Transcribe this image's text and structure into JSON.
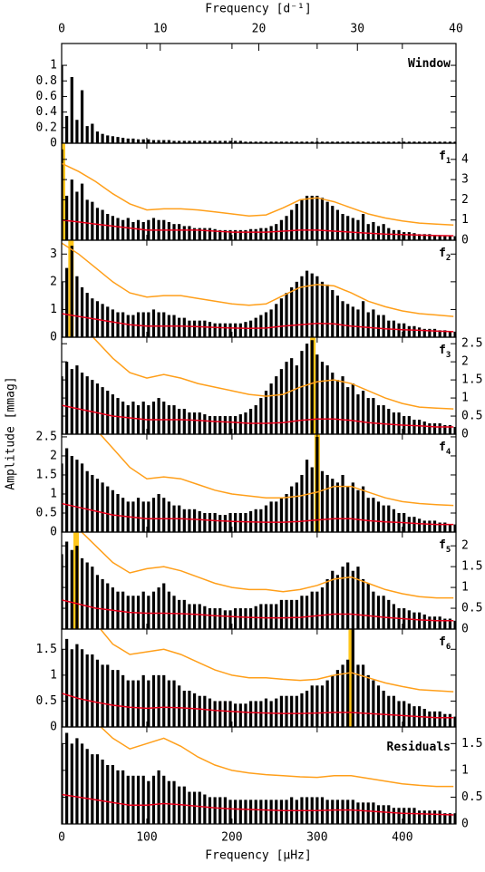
{
  "chart_data": {
    "type": "periodogram",
    "xlabel": "Frequency [μHz]",
    "x2label": "Frequency [d⁻¹]",
    "ylabel": "Amplitude [mmag]",
    "xlim": [
      0,
      463
    ],
    "xticks": [
      0,
      100,
      200,
      300,
      400
    ],
    "x2lim": [
      0,
      40
    ],
    "x2ticks": [
      0,
      10,
      20,
      30,
      40
    ],
    "color": "#000000",
    "upper_color": "#ff9f1a",
    "lower_color": "#e8001c",
    "highlight_color": "#ffc61a",
    "x": [
      0,
      6,
      12,
      18,
      24,
      30,
      36,
      42,
      48,
      54,
      60,
      66,
      72,
      78,
      84,
      90,
      96,
      102,
      108,
      114,
      120,
      126,
      132,
      138,
      144,
      150,
      156,
      162,
      168,
      174,
      180,
      186,
      192,
      198,
      204,
      210,
      216,
      222,
      228,
      234,
      240,
      246,
      252,
      258,
      264,
      270,
      276,
      282,
      288,
      294,
      300,
      306,
      312,
      318,
      324,
      330,
      336,
      342,
      348,
      354,
      360,
      366,
      372,
      378,
      384,
      390,
      396,
      402,
      408,
      414,
      420,
      426,
      432,
      438,
      444,
      450,
      456,
      462
    ],
    "noise_x": [
      0,
      20,
      40,
      60,
      80,
      100,
      120,
      140,
      160,
      180,
      200,
      220,
      240,
      260,
      280,
      300,
      320,
      340,
      360,
      380,
      400,
      420,
      440,
      460
    ],
    "panels": [
      {
        "label": "Window",
        "axis_side": "left",
        "ylim": [
          0,
          1.28
        ],
        "yticks": [
          0,
          0.2,
          0.4,
          0.6,
          0.8,
          1
        ],
        "values": [
          1.0,
          0.35,
          0.85,
          0.3,
          0.68,
          0.22,
          0.25,
          0.15,
          0.12,
          0.1,
          0.09,
          0.08,
          0.07,
          0.06,
          0.06,
          0.05,
          0.05,
          0.05,
          0.04,
          0.04,
          0.04,
          0.04,
          0.03,
          0.03,
          0.03,
          0.03,
          0.03,
          0.03,
          0.03,
          0.03,
          0.03,
          0.03,
          0.03,
          0.03,
          0.03,
          0.03,
          0.02,
          0.02,
          0.02,
          0.02,
          0.02,
          0.02,
          0.02,
          0.02,
          0.02,
          0.02,
          0.02,
          0.02,
          0.02,
          0.02,
          0.02,
          0.02,
          0.02,
          0.02,
          0.02,
          0.02,
          0.02,
          0.02,
          0.02,
          0.02,
          0.02,
          0.02,
          0.02,
          0.02,
          0.02,
          0.02,
          0.02,
          0.02,
          0.02,
          0.02,
          0.02,
          0.02,
          0.02,
          0.02,
          0.02,
          0.02,
          0.02,
          0.02
        ]
      },
      {
        "label": "f",
        "label_sub": "1",
        "axis_side": "right",
        "ylim": [
          0,
          4.8
        ],
        "yticks": [
          0,
          1,
          2,
          3,
          4
        ],
        "highlight": 1,
        "values": [
          4.5,
          2.2,
          3.0,
          2.4,
          2.8,
          2.0,
          1.9,
          1.6,
          1.5,
          1.3,
          1.2,
          1.1,
          1.0,
          1.1,
          0.9,
          1.0,
          0.9,
          1.0,
          1.1,
          1.0,
          1.0,
          0.9,
          0.8,
          0.8,
          0.7,
          0.7,
          0.6,
          0.6,
          0.6,
          0.6,
          0.55,
          0.5,
          0.5,
          0.5,
          0.5,
          0.5,
          0.5,
          0.55,
          0.55,
          0.6,
          0.6,
          0.7,
          0.8,
          1.0,
          1.2,
          1.5,
          1.8,
          2.0,
          2.2,
          2.2,
          2.2,
          2.1,
          1.9,
          1.7,
          1.5,
          1.3,
          1.2,
          1.1,
          1.0,
          1.3,
          0.8,
          0.9,
          0.7,
          0.8,
          0.6,
          0.5,
          0.5,
          0.4,
          0.4,
          0.35,
          0.3,
          0.3,
          0.3,
          0.25,
          0.25,
          0.2,
          0.2,
          0.2
        ],
        "upper_curve": [
          3.8,
          3.4,
          2.9,
          2.3,
          1.8,
          1.5,
          1.55,
          1.55,
          1.5,
          1.4,
          1.3,
          1.2,
          1.25,
          1.6,
          2.0,
          2.1,
          1.9,
          1.6,
          1.3,
          1.1,
          0.95,
          0.85,
          0.8,
          0.75
        ],
        "lower_curve": [
          1.0,
          0.9,
          0.8,
          0.7,
          0.6,
          0.5,
          0.5,
          0.5,
          0.5,
          0.45,
          0.4,
          0.4,
          0.4,
          0.45,
          0.5,
          0.5,
          0.45,
          0.4,
          0.35,
          0.3,
          0.28,
          0.25,
          0.23,
          0.22
        ]
      },
      {
        "label": "f",
        "label_sub": "2",
        "axis_side": "left",
        "ylim": [
          0,
          3.5
        ],
        "yticks": [
          0,
          1,
          2,
          3
        ],
        "highlight": 11,
        "values": [
          2.0,
          2.5,
          3.3,
          2.2,
          1.8,
          1.6,
          1.4,
          1.3,
          1.2,
          1.1,
          1.0,
          0.9,
          0.9,
          0.8,
          0.8,
          0.9,
          0.9,
          0.9,
          1.0,
          0.9,
          0.9,
          0.8,
          0.8,
          0.7,
          0.7,
          0.6,
          0.6,
          0.6,
          0.6,
          0.55,
          0.5,
          0.5,
          0.5,
          0.5,
          0.5,
          0.5,
          0.55,
          0.6,
          0.7,
          0.8,
          0.9,
          1.0,
          1.2,
          1.4,
          1.6,
          1.8,
          2.0,
          2.2,
          2.4,
          2.3,
          2.2,
          2.0,
          1.9,
          1.7,
          1.5,
          1.3,
          1.2,
          1.1,
          1.0,
          1.3,
          0.9,
          1.0,
          0.8,
          0.8,
          0.6,
          0.6,
          0.5,
          0.5,
          0.4,
          0.4,
          0.35,
          0.3,
          0.3,
          0.3,
          0.25,
          0.25,
          0.2,
          0.2
        ],
        "upper_curve": [
          3.4,
          3.0,
          2.5,
          2.0,
          1.6,
          1.45,
          1.5,
          1.5,
          1.4,
          1.3,
          1.2,
          1.15,
          1.2,
          1.5,
          1.8,
          1.9,
          1.85,
          1.6,
          1.3,
          1.1,
          0.95,
          0.85,
          0.8,
          0.75
        ],
        "lower_curve": [
          0.85,
          0.75,
          0.65,
          0.55,
          0.45,
          0.4,
          0.4,
          0.4,
          0.38,
          0.35,
          0.33,
          0.32,
          0.33,
          0.4,
          0.45,
          0.5,
          0.48,
          0.4,
          0.35,
          0.3,
          0.27,
          0.25,
          0.22,
          0.2
        ]
      },
      {
        "label": "f",
        "label_sub": "3",
        "axis_side": "right",
        "ylim": [
          0,
          2.68
        ],
        "yticks": [
          0,
          0.5,
          1,
          1.5,
          2,
          2.5
        ],
        "highlight": 295,
        "values": [
          1.6,
          2.0,
          1.8,
          1.9,
          1.7,
          1.6,
          1.5,
          1.4,
          1.3,
          1.2,
          1.1,
          1.0,
          0.9,
          0.8,
          0.9,
          0.8,
          0.9,
          0.8,
          0.9,
          1.0,
          0.9,
          0.8,
          0.8,
          0.7,
          0.7,
          0.6,
          0.6,
          0.6,
          0.55,
          0.5,
          0.5,
          0.5,
          0.5,
          0.5,
          0.5,
          0.55,
          0.6,
          0.7,
          0.8,
          1.0,
          1.2,
          1.4,
          1.6,
          1.8,
          2.0,
          2.1,
          1.9,
          2.3,
          2.5,
          2.6,
          2.2,
          2.0,
          1.9,
          1.7,
          1.5,
          1.6,
          1.3,
          1.4,
          1.1,
          1.2,
          1.0,
          1.0,
          0.8,
          0.8,
          0.7,
          0.6,
          0.6,
          0.5,
          0.5,
          0.4,
          0.4,
          0.35,
          0.3,
          0.3,
          0.3,
          0.25,
          0.25,
          0.2
        ],
        "upper_curve": [
          3.5,
          3.1,
          2.6,
          2.1,
          1.7,
          1.55,
          1.65,
          1.55,
          1.4,
          1.3,
          1.2,
          1.1,
          1.05,
          1.1,
          1.3,
          1.45,
          1.5,
          1.4,
          1.2,
          1.0,
          0.85,
          0.75,
          0.72,
          0.7
        ],
        "lower_curve": [
          0.8,
          0.7,
          0.6,
          0.5,
          0.45,
          0.4,
          0.4,
          0.4,
          0.38,
          0.35,
          0.33,
          0.3,
          0.3,
          0.32,
          0.38,
          0.42,
          0.42,
          0.38,
          0.32,
          0.28,
          0.25,
          0.23,
          0.2,
          0.2
        ]
      },
      {
        "label": "f",
        "label_sub": "4",
        "axis_side": "left",
        "ylim": [
          0,
          2.57
        ],
        "yticks": [
          0,
          0.5,
          1,
          1.5,
          2,
          2.5
        ],
        "highlight": 300,
        "values": [
          1.8,
          2.2,
          2.0,
          1.9,
          1.8,
          1.6,
          1.5,
          1.4,
          1.3,
          1.2,
          1.1,
          1.0,
          0.9,
          0.8,
          0.8,
          0.9,
          0.8,
          0.8,
          0.9,
          1.0,
          0.9,
          0.8,
          0.7,
          0.7,
          0.6,
          0.6,
          0.6,
          0.55,
          0.5,
          0.5,
          0.5,
          0.45,
          0.45,
          0.5,
          0.5,
          0.5,
          0.5,
          0.55,
          0.6,
          0.6,
          0.7,
          0.8,
          0.8,
          0.9,
          1.0,
          1.2,
          1.3,
          1.5,
          1.9,
          1.7,
          2.5,
          1.6,
          1.5,
          1.4,
          1.3,
          1.5,
          1.2,
          1.3,
          1.1,
          1.2,
          0.9,
          0.9,
          0.8,
          0.7,
          0.7,
          0.6,
          0.5,
          0.5,
          0.4,
          0.4,
          0.35,
          0.3,
          0.3,
          0.3,
          0.25,
          0.25,
          0.2,
          0.2
        ],
        "upper_curve": [
          3.6,
          3.2,
          2.7,
          2.2,
          1.7,
          1.4,
          1.45,
          1.4,
          1.25,
          1.1,
          1.0,
          0.95,
          0.9,
          0.9,
          0.95,
          1.05,
          1.2,
          1.2,
          1.05,
          0.9,
          0.8,
          0.75,
          0.72,
          0.7
        ],
        "lower_curve": [
          0.75,
          0.65,
          0.55,
          0.45,
          0.4,
          0.35,
          0.35,
          0.35,
          0.33,
          0.3,
          0.28,
          0.27,
          0.26,
          0.26,
          0.28,
          0.32,
          0.35,
          0.35,
          0.3,
          0.27,
          0.25,
          0.22,
          0.2,
          0.2
        ]
      },
      {
        "label": "f",
        "label_sub": "5",
        "axis_side": "right",
        "ylim": [
          0,
          2.33
        ],
        "yticks": [
          0,
          0.5,
          1,
          1.5,
          2
        ],
        "highlight": 17,
        "values": [
          1.8,
          2.1,
          1.9,
          2.0,
          1.7,
          1.6,
          1.5,
          1.3,
          1.2,
          1.1,
          1.0,
          0.9,
          0.9,
          0.8,
          0.8,
          0.8,
          0.9,
          0.8,
          0.9,
          1.0,
          1.1,
          0.9,
          0.8,
          0.7,
          0.7,
          0.6,
          0.6,
          0.6,
          0.55,
          0.5,
          0.5,
          0.5,
          0.45,
          0.45,
          0.5,
          0.5,
          0.5,
          0.5,
          0.55,
          0.6,
          0.6,
          0.6,
          0.6,
          0.7,
          0.7,
          0.7,
          0.7,
          0.8,
          0.8,
          0.9,
          0.9,
          1.0,
          1.2,
          1.4,
          1.3,
          1.5,
          1.6,
          1.4,
          1.5,
          1.2,
          1.1,
          0.9,
          0.8,
          0.8,
          0.7,
          0.6,
          0.5,
          0.5,
          0.45,
          0.4,
          0.4,
          0.35,
          0.3,
          0.3,
          0.3,
          0.25,
          0.25,
          0.2
        ],
        "upper_curve": [
          2.8,
          2.4,
          2.0,
          1.6,
          1.35,
          1.45,
          1.5,
          1.4,
          1.25,
          1.1,
          1.0,
          0.95,
          0.95,
          0.9,
          0.95,
          1.05,
          1.2,
          1.25,
          1.1,
          0.95,
          0.85,
          0.78,
          0.75,
          0.75
        ],
        "lower_curve": [
          0.7,
          0.6,
          0.5,
          0.45,
          0.4,
          0.38,
          0.38,
          0.37,
          0.35,
          0.32,
          0.3,
          0.28,
          0.27,
          0.27,
          0.28,
          0.32,
          0.36,
          0.36,
          0.32,
          0.28,
          0.25,
          0.22,
          0.2,
          0.2
        ]
      },
      {
        "label": "f",
        "label_sub": "6",
        "axis_side": "left",
        "ylim": [
          0,
          1.89
        ],
        "yticks": [
          0,
          0.5,
          1,
          1.5
        ],
        "highlight": 340,
        "values": [
          1.5,
          1.7,
          1.5,
          1.6,
          1.5,
          1.4,
          1.4,
          1.3,
          1.2,
          1.2,
          1.1,
          1.1,
          1.0,
          0.9,
          0.9,
          0.9,
          1.0,
          0.9,
          1.0,
          1.0,
          1.0,
          0.9,
          0.9,
          0.8,
          0.7,
          0.7,
          0.65,
          0.6,
          0.6,
          0.55,
          0.5,
          0.5,
          0.5,
          0.5,
          0.45,
          0.45,
          0.45,
          0.5,
          0.5,
          0.5,
          0.55,
          0.5,
          0.55,
          0.6,
          0.6,
          0.6,
          0.6,
          0.65,
          0.7,
          0.8,
          0.8,
          0.8,
          0.9,
          1.0,
          1.1,
          1.2,
          1.3,
          1.9,
          1.2,
          1.2,
          1.0,
          0.9,
          0.8,
          0.7,
          0.6,
          0.6,
          0.5,
          0.5,
          0.45,
          0.4,
          0.4,
          0.35,
          0.3,
          0.3,
          0.3,
          0.25,
          0.25,
          0.2
        ],
        "upper_curve": [
          3.0,
          2.5,
          2.0,
          1.6,
          1.4,
          1.45,
          1.5,
          1.4,
          1.25,
          1.1,
          1.0,
          0.95,
          0.95,
          0.92,
          0.9,
          0.92,
          1.0,
          1.05,
          0.95,
          0.85,
          0.78,
          0.72,
          0.7,
          0.68
        ],
        "lower_curve": [
          0.65,
          0.55,
          0.48,
          0.42,
          0.38,
          0.36,
          0.38,
          0.37,
          0.35,
          0.32,
          0.3,
          0.28,
          0.27,
          0.26,
          0.26,
          0.27,
          0.28,
          0.28,
          0.26,
          0.24,
          0.22,
          0.2,
          0.18,
          0.18
        ]
      },
      {
        "label": "Residuals",
        "axis_side": "right",
        "ylim": [
          0,
          1.81
        ],
        "yticks": [
          0,
          0.5,
          1,
          1.5
        ],
        "values": [
          1.5,
          1.7,
          1.5,
          1.6,
          1.5,
          1.4,
          1.3,
          1.3,
          1.2,
          1.1,
          1.1,
          1.0,
          1.0,
          0.9,
          0.9,
          0.9,
          0.9,
          0.8,
          0.9,
          1.0,
          0.9,
          0.8,
          0.8,
          0.7,
          0.7,
          0.6,
          0.6,
          0.6,
          0.55,
          0.5,
          0.5,
          0.5,
          0.5,
          0.45,
          0.45,
          0.45,
          0.45,
          0.45,
          0.45,
          0.45,
          0.45,
          0.45,
          0.45,
          0.45,
          0.45,
          0.5,
          0.45,
          0.5,
          0.5,
          0.5,
          0.5,
          0.5,
          0.45,
          0.45,
          0.45,
          0.45,
          0.45,
          0.45,
          0.4,
          0.4,
          0.4,
          0.4,
          0.35,
          0.35,
          0.35,
          0.3,
          0.3,
          0.3,
          0.3,
          0.3,
          0.25,
          0.25,
          0.25,
          0.25,
          0.25,
          0.2,
          0.2,
          0.2
        ],
        "upper_curve": [
          2.8,
          2.3,
          1.9,
          1.6,
          1.4,
          1.5,
          1.6,
          1.45,
          1.25,
          1.1,
          1.0,
          0.95,
          0.92,
          0.9,
          0.88,
          0.87,
          0.9,
          0.9,
          0.85,
          0.8,
          0.75,
          0.72,
          0.7,
          0.7
        ],
        "lower_curve": [
          0.55,
          0.5,
          0.45,
          0.4,
          0.35,
          0.35,
          0.38,
          0.36,
          0.33,
          0.3,
          0.28,
          0.27,
          0.26,
          0.25,
          0.25,
          0.25,
          0.26,
          0.26,
          0.24,
          0.22,
          0.2,
          0.19,
          0.18,
          0.17
        ]
      }
    ]
  }
}
